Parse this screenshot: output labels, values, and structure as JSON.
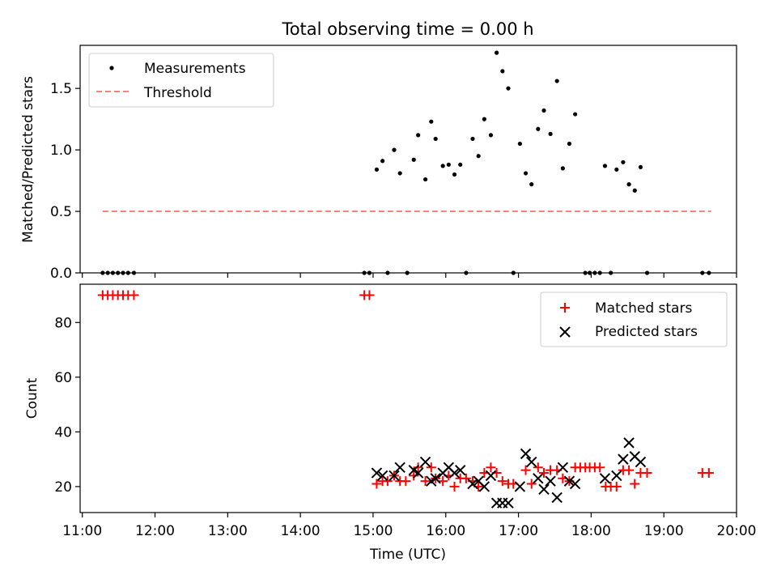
{
  "title": "Total observing time = 0.00 h",
  "chart_data": [
    {
      "type": "scatter",
      "id": "ratio",
      "ylabel": "Matched/Predicted stars",
      "xlim": [
        10.97,
        20.0
      ],
      "ylim": [
        0.0,
        1.85
      ],
      "yticks": [
        0.0,
        0.5,
        1.0,
        1.5
      ],
      "ytick_labels": [
        "0.0",
        "0.5",
        "1.0",
        "1.5"
      ],
      "legend": [
        "Measurements",
        "Threshold"
      ],
      "threshold": {
        "y": 0.5,
        "x_range": [
          11.28,
          19.65
        ],
        "color": "#ff7f7f"
      },
      "measurements": [
        [
          11.28,
          0
        ],
        [
          11.35,
          0
        ],
        [
          11.42,
          0
        ],
        [
          11.49,
          0
        ],
        [
          11.56,
          0
        ],
        [
          11.63,
          0
        ],
        [
          11.71,
          0
        ],
        [
          14.88,
          0
        ],
        [
          14.95,
          0
        ],
        [
          15.2,
          0
        ],
        [
          15.47,
          0
        ],
        [
          16.28,
          0
        ],
        [
          16.93,
          0
        ],
        [
          17.92,
          0
        ],
        [
          17.98,
          0
        ],
        [
          18.05,
          0
        ],
        [
          18.12,
          0
        ],
        [
          18.27,
          0
        ],
        [
          18.77,
          0
        ],
        [
          19.53,
          0
        ],
        [
          19.62,
          0
        ],
        [
          15.05,
          0.84
        ],
        [
          15.13,
          0.91
        ],
        [
          15.29,
          1.0
        ],
        [
          15.37,
          0.81
        ],
        [
          15.56,
          0.92
        ],
        [
          15.62,
          1.12
        ],
        [
          15.72,
          0.76
        ],
        [
          15.8,
          1.23
        ],
        [
          15.86,
          1.09
        ],
        [
          15.96,
          0.87
        ],
        [
          16.04,
          0.88
        ],
        [
          16.12,
          0.8
        ],
        [
          16.2,
          0.88
        ],
        [
          16.37,
          1.09
        ],
        [
          16.45,
          0.95
        ],
        [
          16.53,
          1.25
        ],
        [
          16.62,
          1.12
        ],
        [
          16.7,
          1.79
        ],
        [
          16.78,
          1.64
        ],
        [
          16.86,
          1.5
        ],
        [
          17.02,
          1.05
        ],
        [
          17.1,
          0.81
        ],
        [
          17.18,
          0.72
        ],
        [
          17.27,
          1.17
        ],
        [
          17.35,
          1.32
        ],
        [
          17.44,
          1.13
        ],
        [
          17.53,
          1.56
        ],
        [
          17.61,
          0.85
        ],
        [
          17.7,
          1.05
        ],
        [
          17.78,
          1.29
        ],
        [
          18.19,
          0.87
        ],
        [
          18.35,
          0.84
        ],
        [
          18.44,
          0.9
        ],
        [
          18.52,
          0.72
        ],
        [
          18.6,
          0.67
        ],
        [
          18.68,
          0.86
        ]
      ]
    },
    {
      "type": "scatter",
      "id": "count",
      "xlabel": "Time (UTC)",
      "ylabel": "Count",
      "xlim": [
        10.97,
        20.0
      ],
      "ylim": [
        10.5,
        94.0
      ],
      "yticks": [
        20,
        40,
        60,
        80
      ],
      "ytick_labels": [
        "20",
        "40",
        "60",
        "80"
      ],
      "xticks": [
        11,
        12,
        13,
        14,
        15,
        16,
        17,
        18,
        19,
        20
      ],
      "xtick_labels": [
        "11:00",
        "12:00",
        "13:00",
        "14:00",
        "15:00",
        "16:00",
        "17:00",
        "18:00",
        "19:00",
        "20:00"
      ],
      "legend": [
        "Matched stars",
        "Predicted stars"
      ],
      "series": [
        {
          "name": "Matched stars",
          "marker": "+",
          "color": "#ff0000",
          "points": [
            [
              11.28,
              90
            ],
            [
              11.35,
              90
            ],
            [
              11.42,
              90
            ],
            [
              11.49,
              90
            ],
            [
              11.56,
              90
            ],
            [
              11.63,
              90
            ],
            [
              11.71,
              90
            ],
            [
              14.88,
              90
            ],
            [
              14.95,
              90
            ],
            [
              15.05,
              21
            ],
            [
              15.13,
              22
            ],
            [
              15.2,
              22
            ],
            [
              15.29,
              24
            ],
            [
              15.37,
              22
            ],
            [
              15.45,
              22
            ],
            [
              15.56,
              24
            ],
            [
              15.62,
              27
            ],
            [
              15.72,
              22
            ],
            [
              15.8,
              27
            ],
            [
              15.86,
              23
            ],
            [
              15.96,
              22
            ],
            [
              16.04,
              24
            ],
            [
              16.12,
              20
            ],
            [
              16.2,
              23
            ],
            [
              16.28,
              23
            ],
            [
              16.37,
              22
            ],
            [
              16.45,
              20
            ],
            [
              16.53,
              25
            ],
            [
              16.62,
              27
            ],
            [
              16.7,
              25
            ],
            [
              16.78,
              22
            ],
            [
              16.86,
              21
            ],
            [
              16.93,
              21
            ],
            [
              17.1,
              26
            ],
            [
              17.18,
              21
            ],
            [
              17.27,
              27
            ],
            [
              17.35,
              25
            ],
            [
              17.44,
              26
            ],
            [
              17.53,
              26
            ],
            [
              17.61,
              23
            ],
            [
              17.7,
              22
            ],
            [
              17.78,
              27
            ],
            [
              17.85,
              27
            ],
            [
              17.92,
              27
            ],
            [
              17.98,
              27
            ],
            [
              18.05,
              27
            ],
            [
              18.12,
              27
            ],
            [
              18.2,
              20
            ],
            [
              18.27,
              20
            ],
            [
              18.35,
              20
            ],
            [
              18.44,
              26
            ],
            [
              18.52,
              26
            ],
            [
              18.6,
              21
            ],
            [
              18.68,
              25
            ],
            [
              18.77,
              25
            ],
            [
              19.53,
              25
            ],
            [
              19.62,
              25
            ]
          ]
        },
        {
          "name": "Predicted stars",
          "marker": "x",
          "color": "#000000",
          "points": [
            [
              15.05,
              25
            ],
            [
              15.13,
              24
            ],
            [
              15.29,
              24
            ],
            [
              15.37,
              27
            ],
            [
              15.56,
              26
            ],
            [
              15.62,
              25
            ],
            [
              15.72,
              29
            ],
            [
              15.8,
              22
            ],
            [
              15.86,
              23
            ],
            [
              15.96,
              25
            ],
            [
              16.04,
              27
            ],
            [
              16.12,
              25
            ],
            [
              16.2,
              26
            ],
            [
              16.37,
              21
            ],
            [
              16.45,
              22
            ],
            [
              16.53,
              20
            ],
            [
              16.62,
              24
            ],
            [
              16.7,
              14
            ],
            [
              16.78,
              14
            ],
            [
              16.86,
              14
            ],
            [
              17.02,
              20
            ],
            [
              17.1,
              32
            ],
            [
              17.18,
              29
            ],
            [
              17.27,
              23
            ],
            [
              17.35,
              19
            ],
            [
              17.44,
              22
            ],
            [
              17.53,
              16
            ],
            [
              17.61,
              27
            ],
            [
              17.7,
              22
            ],
            [
              17.78,
              21
            ],
            [
              18.19,
              23
            ],
            [
              18.35,
              24
            ],
            [
              18.44,
              30
            ],
            [
              18.52,
              36
            ],
            [
              18.6,
              31
            ],
            [
              18.68,
              29
            ]
          ]
        }
      ]
    }
  ]
}
